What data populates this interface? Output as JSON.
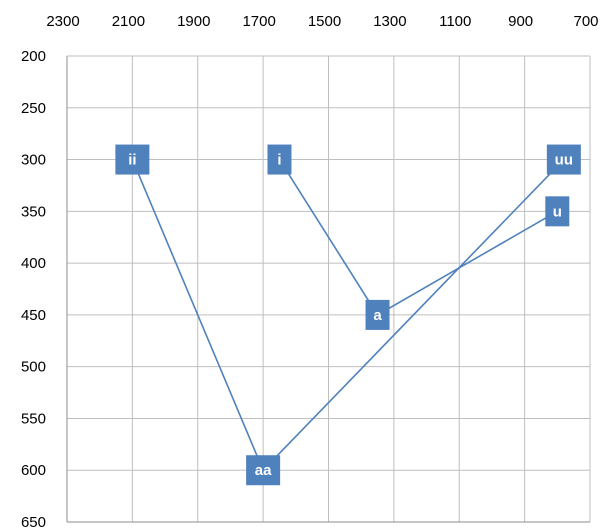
{
  "chart_data": {
    "type": "scatter",
    "x_reversed": true,
    "y_reversed": true,
    "x_axis_position": "top",
    "xlim": [
      2300,
      700
    ],
    "ylim": [
      200,
      650
    ],
    "x_ticks": [
      "2300",
      "2100",
      "1900",
      "1700",
      "1500",
      "1300",
      "1100",
      "900",
      "700"
    ],
    "y_ticks": [
      "200",
      "250",
      "300",
      "350",
      "400",
      "450",
      "500",
      "550",
      "600",
      "650"
    ],
    "grid": true,
    "colors": {
      "series": "#4f81bd",
      "label_text": "#ffffff",
      "grid": "#bfbfbf"
    },
    "points": [
      {
        "label": "ii",
        "x": 2100,
        "y": 300
      },
      {
        "label": "i",
        "x": 1650,
        "y": 300
      },
      {
        "label": "aa",
        "x": 1700,
        "y": 600
      },
      {
        "label": "a",
        "x": 1350,
        "y": 450
      },
      {
        "label": "u",
        "x": 800,
        "y": 350
      },
      {
        "label": "uu",
        "x": 780,
        "y": 300
      }
    ],
    "lines": [
      [
        "ii",
        "aa"
      ],
      [
        "aa",
        "uu"
      ],
      [
        "i",
        "a"
      ],
      [
        "a",
        "u"
      ]
    ]
  }
}
